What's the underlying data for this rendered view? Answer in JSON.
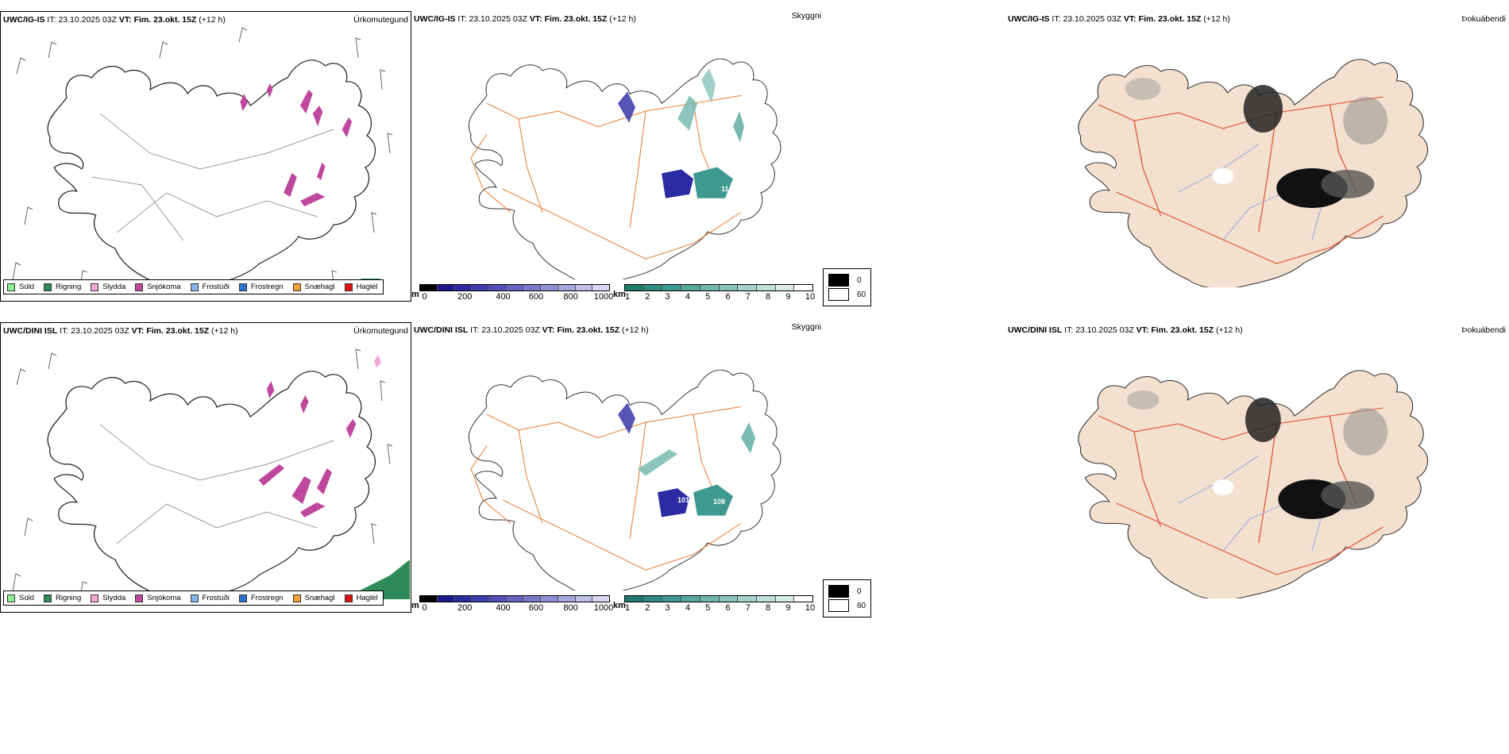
{
  "rows": [
    {
      "model": "UWC/IG-IS",
      "it_label": "IT:",
      "it_value": "23.10.2025 03Z",
      "vt_label": "VT:",
      "vt_value": "Fim. 23.okt. 15Z",
      "lead": "(+12 h)"
    },
    {
      "model": "UWC/DINI ISL",
      "it_label": "IT:",
      "it_value": "23.10.2025 03Z",
      "vt_label": "VT:",
      "vt_value": "Fim. 23.okt. 15Z",
      "lead": "(+12 h)"
    }
  ],
  "panel_titles": {
    "precip": "Úrkomutegund",
    "visibility": "Skyggni",
    "fog": "Þokuábendi"
  },
  "precip_legend": [
    {
      "label": "Súld",
      "color": "#90ee90"
    },
    {
      "label": "Rigning",
      "color": "#2e8b57"
    },
    {
      "label": "Slydda",
      "color": "#f4a6d7"
    },
    {
      "label": "Snjókoma",
      "color": "#c0479e"
    },
    {
      "label": "Frostúði",
      "color": "#87b6ea"
    },
    {
      "label": "Frostregn",
      "color": "#2f6fd0"
    },
    {
      "label": "Snæhagl",
      "color": "#f0a030"
    },
    {
      "label": "Haglél",
      "color": "#e01010"
    }
  ],
  "vis_scale_m": {
    "unit": "m",
    "ticks": [
      "0",
      "200",
      "400",
      "600",
      "800",
      "1000"
    ],
    "colors": [
      "#000000",
      "#1a1a8c",
      "#2b2ba3",
      "#3c3cb0",
      "#5050b8",
      "#6464c2",
      "#7a7acb",
      "#9090d6",
      "#a8a8e0",
      "#c0c0ea",
      "#d8d8f4"
    ]
  },
  "vis_scale_km": {
    "unit": "km",
    "ticks": [
      "1",
      "2",
      "3",
      "4",
      "5",
      "6",
      "7",
      "8",
      "9",
      "10"
    ],
    "colors": [
      "#1f7a70",
      "#2e8a80",
      "#3e9a90",
      "#56a89e",
      "#70b6ae",
      "#8ac4bc",
      "#a4d2cc",
      "#bee0db",
      "#d8ede9",
      "#ffffff"
    ]
  },
  "fog_legend": [
    {
      "label": "0",
      "color": "#000000"
    },
    {
      "label": "60",
      "color": "#ffffff"
    }
  ],
  "map_labels": {
    "row1": [
      "11"
    ],
    "row2": [
      "101",
      "108"
    ]
  },
  "colors": {
    "land_fog": "#f3e0cf",
    "roads": "#e8782a",
    "fog_roads": "#e0502a",
    "rivers": "#8aa0f0",
    "snow": "#c0479e",
    "rain": "#2e8b57",
    "vis_low": "#2b2ba3",
    "vis_mid": "#3e9a90"
  }
}
